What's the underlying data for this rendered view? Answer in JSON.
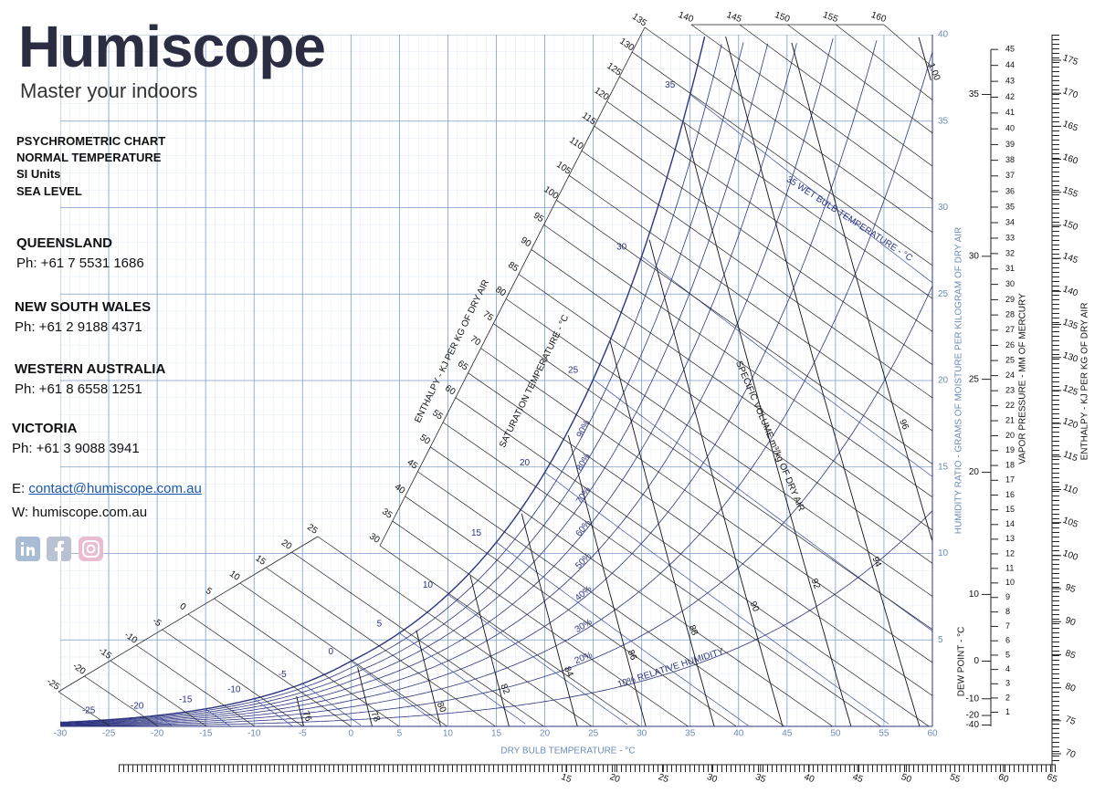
{
  "brand": {
    "name": "Humiscope",
    "tagline": "Master your indoors"
  },
  "chart_info": [
    "PSYCHROMETRIC CHART",
    "NORMAL TEMPERATURE",
    "SI Units",
    "SEA LEVEL"
  ],
  "contacts": [
    {
      "region": "QUEENSLAND",
      "phone": "Ph: +61 7 5531 1686"
    },
    {
      "region": "NEW SOUTH WALES",
      "phone": "Ph: +61 2 9188 4371"
    },
    {
      "region": "WESTERN AUSTRALIA",
      "phone": "Ph: +61 8 6558 1251"
    },
    {
      "region": "VICTORIA",
      "phone": "Ph: +61 3 9088 3941"
    }
  ],
  "email": {
    "label": "E:",
    "address": "contact@humiscope.com.au"
  },
  "website": "W: humiscope.com.au",
  "chart": {
    "type": "psychrometric",
    "x_label": "DRY BULB TEMPERATURE - °C",
    "y_label": "HUMIDITY RATIO - GRAMS OF MOISTURE PER KILOGRAM OF DRY AIR",
    "xlim": [
      -30,
      60
    ],
    "ylim": [
      0,
      40
    ],
    "xticks": [
      -30,
      -25,
      -20,
      -15,
      -10,
      -5,
      0,
      5,
      10,
      15,
      20,
      25,
      30,
      35,
      40,
      45,
      50,
      55,
      60
    ],
    "yticks": [
      5,
      10,
      15,
      20,
      25,
      30,
      35,
      40
    ],
    "rh_curves": [
      10,
      20,
      30,
      40,
      50,
      60,
      70,
      80,
      90
    ],
    "rh_labels": [
      "10% RELATIVE HUMIDITY",
      "20%",
      "30%",
      "40%",
      "50%",
      "60%",
      "70%",
      "80%",
      "90%"
    ],
    "saturation_label": "SATURATION TEMPERATURE - °C",
    "saturation_temps": [
      -25,
      -20,
      -15,
      -10,
      -5,
      0,
      5,
      10,
      15,
      20,
      25,
      30,
      35
    ],
    "wet_bulb_label": "35 WET BULB TEMPERATURE - °C",
    "enthalpy_label": "ENTHALPY - KJ PER KG OF DRY AIR",
    "enthalpy_scales": [
      [
        -25,
        -20,
        -15,
        -10,
        -5,
        0,
        5,
        10,
        15,
        20,
        25
      ],
      [
        30,
        35,
        40,
        45,
        50,
        55,
        60,
        65,
        70,
        75,
        80,
        85,
        90,
        95,
        100,
        105,
        110,
        115,
        120,
        125,
        130,
        135
      ],
      [
        140,
        145,
        150,
        155,
        160
      ]
    ],
    "specific_volume_label": "SPECIFIC VOLUME m³/kg OF DRY AIR",
    "specific_volume": [
      {
        "value": 0.76,
        "label": "76"
      },
      {
        "value": 0.78,
        "label": "78"
      },
      {
        "value": 0.8,
        "label": "80"
      },
      {
        "value": 0.82,
        "label": "82"
      },
      {
        "value": 0.84,
        "label": "84"
      },
      {
        "value": 0.86,
        "label": "86"
      },
      {
        "value": 0.88,
        "label": "88"
      },
      {
        "value": 0.9,
        "label": "90"
      },
      {
        "value": 0.92,
        "label": "92"
      },
      {
        "value": 0.94,
        "label": "94"
      },
      {
        "value": 0.96,
        "label": "96"
      },
      {
        "value": 1,
        "label": "1.00"
      }
    ],
    "dew_point_label": "DEW POINT - °C",
    "dew_point_ticks": [
      -40,
      -20,
      -10,
      0,
      10,
      20,
      25,
      30,
      35
    ],
    "vapor_pressure_label": "VAPOR PRESSURE - MM OF MERCURY",
    "vapor_pressure_ticks": [
      1,
      2,
      3,
      4,
      5,
      6,
      7,
      8,
      9,
      10,
      11,
      12,
      13,
      14,
      15,
      16,
      17,
      18,
      19,
      20,
      21,
      22,
      23,
      24,
      25,
      26,
      27,
      28,
      29,
      30,
      31,
      32,
      33,
      34,
      35,
      36,
      37,
      38,
      39,
      40,
      41,
      42,
      43,
      44,
      45
    ],
    "enthalpy_right_label": "ENTHALPY - KJ PER KG OF DRY AIR",
    "enthalpy_right": [
      70,
      75,
      80,
      85,
      90,
      95,
      100,
      105,
      110,
      115,
      120,
      125,
      130,
      135,
      140,
      145,
      150,
      155,
      160,
      165,
      170,
      175
    ],
    "enthalpy_bottom": [
      15,
      20,
      25,
      30,
      35,
      40,
      45,
      50,
      55,
      60,
      65
    ]
  }
}
